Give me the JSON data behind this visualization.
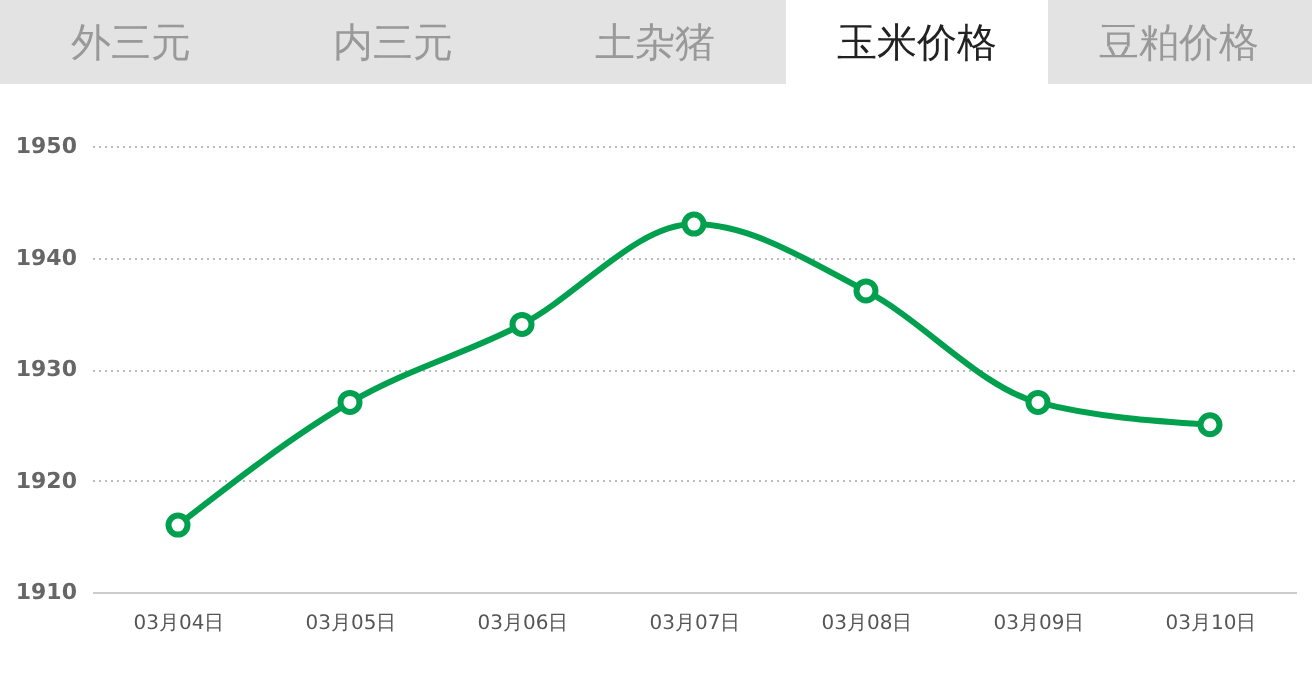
{
  "chart_data": {
    "type": "line",
    "title": "玉米价格",
    "annotations": [
      "外三元",
      "内三元",
      "土杂猪",
      "豆粕价格"
    ],
    "categories": [
      "03月04日",
      "03月05日",
      "03月06日",
      "03月07日",
      "03月08日",
      "03月09日",
      "03月10日"
    ],
    "series": [
      {
        "color": "#00a04f",
        "values": [
          1916,
          1927,
          1934,
          1943,
          1937,
          1927,
          1925
        ]
      }
    ],
    "ylim": [
      1910,
      1950
    ],
    "yticks": [
      1910,
      1920,
      1930,
      1940,
      1950
    ],
    "grid": "y",
    "marker": "circle",
    "line_style": "solid",
    "legend": false
  }
}
